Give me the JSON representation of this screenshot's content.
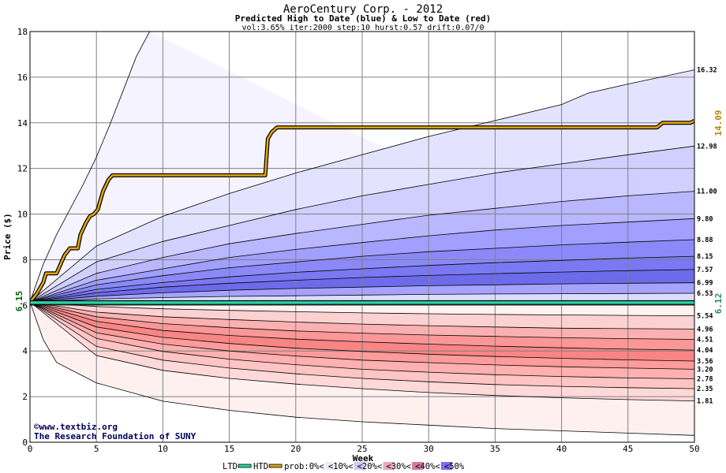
{
  "chart_data": {
    "type": "area",
    "title": "AeroCentury Corp. - 2012",
    "subtitle": "Predicted High to Date (blue) &  Low to Date (red)",
    "params": "vol:3.65% iter:2000 step:10 hurst:0.57 drift:0.07/0",
    "xlabel": "Week",
    "ylabel": "Price ($)",
    "xlim": [
      0,
      50
    ],
    "ylim": [
      0,
      18
    ],
    "xticks": [
      0,
      5,
      10,
      15,
      20,
      25,
      30,
      35,
      40,
      45,
      50
    ],
    "yticks": [
      0,
      2,
      4,
      6,
      8,
      10,
      12,
      14,
      16,
      18
    ],
    "start_price": 6.15,
    "start_label": "6.15",
    "high_label": "14.09",
    "low_label": "6.12",
    "credit": [
      "www.textbiz.org",
      "The Research Foundation of SUNY"
    ],
    "upper_band_ends": [
      "16.32",
      "12.98",
      "11.00",
      "9.80",
      "8.88",
      "8.15",
      "7.57",
      "6.99",
      "6.53"
    ],
    "lower_band_ends": [
      "5.54",
      "4.96",
      "4.51",
      "4.04",
      "3.56",
      "3.20",
      "2.78",
      "2.35",
      "1.81"
    ],
    "upper_curves": [
      {
        "end": 16.32,
        "points": [
          [
            0,
            6.15
          ],
          [
            1,
            7.8
          ],
          [
            2,
            9.1
          ],
          [
            3,
            10.2
          ],
          [
            4,
            11.3
          ],
          [
            5,
            12.5
          ],
          [
            6,
            13.9
          ],
          [
            7,
            15.4
          ],
          [
            8,
            16.9
          ],
          [
            9,
            18.0
          ]
        ]
      },
      {
        "end": 16.32,
        "points": [
          [
            0,
            6.15
          ],
          [
            5,
            8.6
          ],
          [
            10,
            9.9
          ],
          [
            15,
            10.9
          ],
          [
            20,
            11.8
          ],
          [
            25,
            12.6
          ],
          [
            30,
            13.4
          ],
          [
            35,
            14.1
          ],
          [
            40,
            14.8
          ],
          [
            42,
            15.3
          ],
          [
            45,
            15.7
          ],
          [
            50,
            16.32
          ]
        ]
      },
      {
        "end": 12.98,
        "points": [
          [
            0,
            6.15
          ],
          [
            5,
            7.9
          ],
          [
            10,
            8.8
          ],
          [
            15,
            9.5
          ],
          [
            20,
            10.2
          ],
          [
            25,
            10.8
          ],
          [
            30,
            11.3
          ],
          [
            35,
            11.8
          ],
          [
            40,
            12.2
          ],
          [
            45,
            12.6
          ],
          [
            50,
            12.98
          ]
        ]
      },
      {
        "end": 11.0,
        "points": [
          [
            0,
            6.15
          ],
          [
            5,
            7.4
          ],
          [
            10,
            8.1
          ],
          [
            15,
            8.7
          ],
          [
            20,
            9.15
          ],
          [
            25,
            9.55
          ],
          [
            30,
            9.95
          ],
          [
            35,
            10.25
          ],
          [
            40,
            10.55
          ],
          [
            45,
            10.8
          ],
          [
            50,
            11.0
          ]
        ]
      },
      {
        "end": 9.8,
        "points": [
          [
            0,
            6.15
          ],
          [
            5,
            7.1
          ],
          [
            10,
            7.6
          ],
          [
            15,
            8.1
          ],
          [
            20,
            8.45
          ],
          [
            25,
            8.75
          ],
          [
            30,
            9.05
          ],
          [
            35,
            9.3
          ],
          [
            40,
            9.5
          ],
          [
            45,
            9.65
          ],
          [
            50,
            9.8
          ]
        ]
      },
      {
        "end": 8.88,
        "points": [
          [
            0,
            6.15
          ],
          [
            5,
            6.9
          ],
          [
            10,
            7.3
          ],
          [
            15,
            7.65
          ],
          [
            20,
            7.9
          ],
          [
            25,
            8.15
          ],
          [
            30,
            8.35
          ],
          [
            35,
            8.5
          ],
          [
            40,
            8.65
          ],
          [
            45,
            8.77
          ],
          [
            50,
            8.88
          ]
        ]
      },
      {
        "end": 8.15,
        "points": [
          [
            0,
            6.15
          ],
          [
            5,
            6.7
          ],
          [
            10,
            7.0
          ],
          [
            15,
            7.25
          ],
          [
            20,
            7.45
          ],
          [
            25,
            7.6
          ],
          [
            30,
            7.75
          ],
          [
            35,
            7.87
          ],
          [
            40,
            7.97
          ],
          [
            45,
            8.07
          ],
          [
            50,
            8.15
          ]
        ]
      },
      {
        "end": 7.57,
        "points": [
          [
            0,
            6.15
          ],
          [
            5,
            6.55
          ],
          [
            10,
            6.8
          ],
          [
            15,
            6.97
          ],
          [
            20,
            7.1
          ],
          [
            25,
            7.22
          ],
          [
            30,
            7.31
          ],
          [
            35,
            7.39
          ],
          [
            40,
            7.46
          ],
          [
            45,
            7.52
          ],
          [
            50,
            7.57
          ]
        ]
      },
      {
        "end": 6.99,
        "points": [
          [
            0,
            6.15
          ],
          [
            5,
            6.4
          ],
          [
            10,
            6.55
          ],
          [
            15,
            6.66
          ],
          [
            20,
            6.74
          ],
          [
            25,
            6.8
          ],
          [
            30,
            6.86
          ],
          [
            35,
            6.9
          ],
          [
            40,
            6.94
          ],
          [
            45,
            6.97
          ],
          [
            50,
            6.99
          ]
        ]
      },
      {
        "end": 6.53,
        "points": [
          [
            0,
            6.15
          ],
          [
            5,
            6.28
          ],
          [
            10,
            6.34
          ],
          [
            15,
            6.39
          ],
          [
            20,
            6.42
          ],
          [
            25,
            6.45
          ],
          [
            30,
            6.48
          ],
          [
            35,
            6.5
          ],
          [
            40,
            6.51
          ],
          [
            45,
            6.52
          ],
          [
            50,
            6.53
          ]
        ]
      }
    ],
    "lower_curves": [
      {
        "end": 5.54,
        "points": [
          [
            0,
            6.15
          ],
          [
            5,
            5.95
          ],
          [
            10,
            5.85
          ],
          [
            15,
            5.78
          ],
          [
            20,
            5.72
          ],
          [
            25,
            5.67
          ],
          [
            30,
            5.63
          ],
          [
            35,
            5.6
          ],
          [
            40,
            5.58
          ],
          [
            45,
            5.56
          ],
          [
            50,
            5.54
          ]
        ]
      },
      {
        "end": 4.96,
        "points": [
          [
            0,
            6.15
          ],
          [
            5,
            5.7
          ],
          [
            10,
            5.5
          ],
          [
            15,
            5.38
          ],
          [
            20,
            5.27
          ],
          [
            25,
            5.18
          ],
          [
            30,
            5.11
          ],
          [
            35,
            5.05
          ],
          [
            40,
            5.0
          ],
          [
            45,
            4.98
          ],
          [
            50,
            4.96
          ]
        ]
      },
      {
        "end": 4.51,
        "points": [
          [
            0,
            6.15
          ],
          [
            5,
            5.5
          ],
          [
            10,
            5.2
          ],
          [
            15,
            5.02
          ],
          [
            20,
            4.88
          ],
          [
            25,
            4.78
          ],
          [
            30,
            4.7
          ],
          [
            35,
            4.64
          ],
          [
            40,
            4.58
          ],
          [
            45,
            4.54
          ],
          [
            50,
            4.51
          ]
        ]
      },
      {
        "end": 4.04,
        "points": [
          [
            0,
            6.15
          ],
          [
            5,
            5.3
          ],
          [
            10,
            4.9
          ],
          [
            15,
            4.68
          ],
          [
            20,
            4.52
          ],
          [
            25,
            4.4
          ],
          [
            30,
            4.3
          ],
          [
            35,
            4.21
          ],
          [
            40,
            4.14
          ],
          [
            45,
            4.08
          ],
          [
            50,
            4.04
          ]
        ]
      },
      {
        "end": 3.56,
        "points": [
          [
            0,
            6.15
          ],
          [
            5,
            5.05
          ],
          [
            10,
            4.6
          ],
          [
            15,
            4.33
          ],
          [
            20,
            4.12
          ],
          [
            25,
            3.98
          ],
          [
            30,
            3.86
          ],
          [
            35,
            3.76
          ],
          [
            40,
            3.68
          ],
          [
            45,
            3.61
          ],
          [
            50,
            3.56
          ]
        ]
      },
      {
        "end": 3.2,
        "points": [
          [
            0,
            6.15
          ],
          [
            5,
            4.8
          ],
          [
            10,
            4.3
          ],
          [
            15,
            4.0
          ],
          [
            20,
            3.78
          ],
          [
            25,
            3.6
          ],
          [
            30,
            3.49
          ],
          [
            35,
            3.39
          ],
          [
            40,
            3.31
          ],
          [
            45,
            3.25
          ],
          [
            50,
            3.2
          ]
        ]
      },
      {
        "end": 2.78,
        "points": [
          [
            0,
            6.15
          ],
          [
            5,
            4.55
          ],
          [
            10,
            3.98
          ],
          [
            15,
            3.64
          ],
          [
            20,
            3.4
          ],
          [
            25,
            3.2
          ],
          [
            30,
            3.07
          ],
          [
            35,
            2.96
          ],
          [
            40,
            2.88
          ],
          [
            45,
            2.82
          ],
          [
            50,
            2.78
          ]
        ]
      },
      {
        "end": 2.35,
        "points": [
          [
            0,
            6.15
          ],
          [
            5,
            4.2
          ],
          [
            10,
            3.6
          ],
          [
            15,
            3.25
          ],
          [
            20,
            3.0
          ],
          [
            25,
            2.8
          ],
          [
            30,
            2.65
          ],
          [
            35,
            2.53
          ],
          [
            40,
            2.45
          ],
          [
            45,
            2.39
          ],
          [
            50,
            2.35
          ]
        ]
      },
      {
        "end": 1.81,
        "points": [
          [
            0,
            6.15
          ],
          [
            5,
            3.8
          ],
          [
            10,
            3.15
          ],
          [
            15,
            2.8
          ],
          [
            20,
            2.55
          ],
          [
            25,
            2.35
          ],
          [
            30,
            2.18
          ],
          [
            35,
            2.05
          ],
          [
            40,
            1.95
          ],
          [
            45,
            1.87
          ],
          [
            50,
            1.81
          ]
        ]
      },
      {
        "end": 0.3,
        "points": [
          [
            0,
            6.15
          ],
          [
            1,
            4.5
          ],
          [
            2,
            3.5
          ],
          [
            5,
            2.6
          ],
          [
            10,
            1.8
          ],
          [
            15,
            1.4
          ],
          [
            20,
            1.1
          ],
          [
            25,
            0.9
          ],
          [
            30,
            0.75
          ],
          [
            35,
            0.6
          ],
          [
            40,
            0.5
          ],
          [
            45,
            0.4
          ],
          [
            50,
            0.3
          ]
        ]
      }
    ],
    "htd_line": [
      [
        0,
        6.15
      ],
      [
        0.5,
        6.5
      ],
      [
        1,
        7.0
      ],
      [
        1.2,
        7.4
      ],
      [
        2,
        7.4
      ],
      [
        2.3,
        7.8
      ],
      [
        2.6,
        8.2
      ],
      [
        3,
        8.5
      ],
      [
        3.6,
        8.5
      ],
      [
        3.8,
        9.1
      ],
      [
        4.2,
        9.6
      ],
      [
        4.5,
        9.9
      ],
      [
        4.8,
        10.0
      ],
      [
        5.1,
        10.2
      ],
      [
        5.5,
        11.0
      ],
      [
        5.9,
        11.5
      ],
      [
        6.2,
        11.7
      ],
      [
        17.7,
        11.7
      ],
      [
        17.9,
        13.3
      ],
      [
        18.2,
        13.6
      ],
      [
        18.6,
        13.8
      ],
      [
        47.2,
        13.8
      ],
      [
        47.6,
        14.0
      ],
      [
        49.7,
        14.0
      ],
      [
        50,
        14.09
      ]
    ],
    "ltd_value": 6.12,
    "legend": [
      {
        "label": "LTD",
        "swatch": "#2bd3a4",
        "kind": "line"
      },
      {
        "label": "HTD",
        "swatch": "#d4a017",
        "kind": "line"
      },
      {
        "label": "prob:0%<",
        "swatch": "#ffffff",
        "kind": "box"
      },
      {
        "label": "<10%<",
        "swatch": "#ecebff",
        "kind": "box"
      },
      {
        "label": "<20%<",
        "swatch": "#cdc8f7",
        "kind": "box"
      },
      {
        "label": "<30%<",
        "swatch": "#e8a9c2",
        "kind": "box"
      },
      {
        "label": "<40%<",
        "swatch": "#d57aa2",
        "kind": "box"
      },
      {
        "label": "<50%",
        "swatch": "#7d6ff0",
        "kind": "box"
      }
    ],
    "colors": {
      "upper_fills": [
        "#f4f3ff",
        "#e4e3ff",
        "#d0cfff",
        "#b9b7ff",
        "#a19fff",
        "#8b89f9",
        "#7a78f2",
        "#6d6bea",
        "#a5a3ff",
        "#dcdcff"
      ],
      "lower_fills": [
        "#fff0f0",
        "#ffd9d9",
        "#ffc4c4",
        "#ffb0b0",
        "#ff9b9b",
        "#f98585",
        "#fb9797",
        "#fbb1b1",
        "#fcd1d1",
        "#fef2f2"
      ],
      "grid": "#808080",
      "htd": "#e8a70f",
      "ltd": "#2bd3a4",
      "title": "#000000",
      "credit": "#00005a",
      "high_label": "#b8860b",
      "low_label": "#2e8b57"
    }
  }
}
